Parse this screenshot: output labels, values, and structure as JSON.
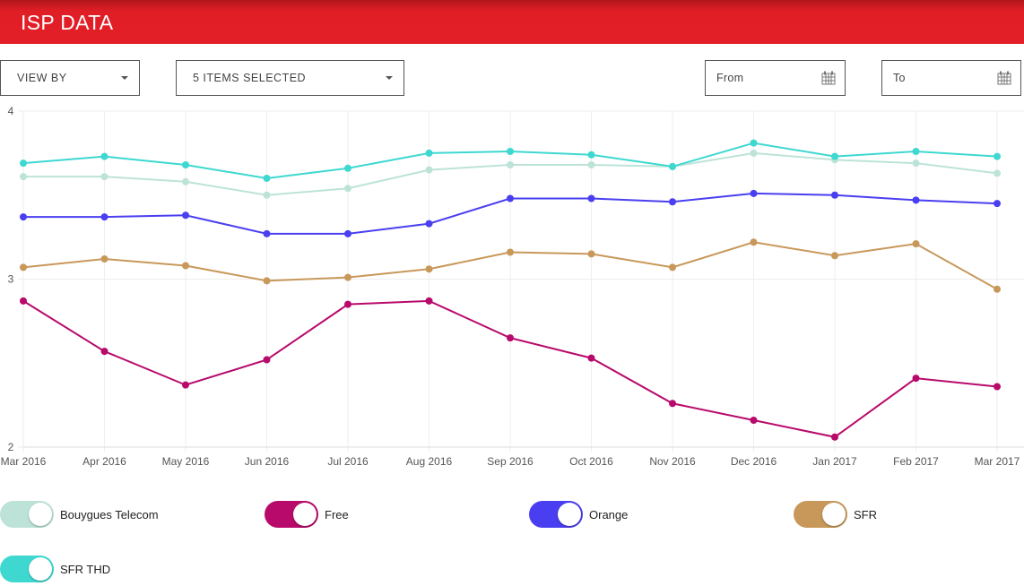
{
  "header": {
    "title": "ISP DATA"
  },
  "controls": {
    "view_by": "VIEW BY",
    "items_selected": "5 ITEMS SELECTED",
    "from_placeholder": "From",
    "to_placeholder": "To"
  },
  "chart_data": {
    "type": "line",
    "x": [
      "Mar 2016",
      "Apr 2016",
      "May 2016",
      "Jun 2016",
      "Jul 2016",
      "Aug 2016",
      "Sep 2016",
      "Oct 2016",
      "Nov 2016",
      "Dec 2016",
      "Jan 2017",
      "Feb 2017",
      "Mar 2017"
    ],
    "ylim": [
      2,
      4
    ],
    "yticks": [
      "2",
      "3",
      "4"
    ],
    "grid": true,
    "series": [
      {
        "name": "Bouygues Telecom",
        "color": "#bde3d8",
        "values": [
          3.61,
          3.61,
          3.58,
          3.5,
          3.54,
          3.65,
          3.68,
          3.68,
          3.67,
          3.75,
          3.71,
          3.69,
          3.63
        ]
      },
      {
        "name": "Free",
        "color": "#b80a6b",
        "values": [
          2.87,
          2.57,
          2.37,
          2.52,
          2.85,
          2.87,
          2.65,
          2.53,
          2.26,
          2.16,
          2.06,
          2.41,
          2.36
        ]
      },
      {
        "name": "Orange",
        "color": "#4a3ff0",
        "values": [
          3.37,
          3.37,
          3.38,
          3.27,
          3.27,
          3.33,
          3.48,
          3.48,
          3.46,
          3.51,
          3.5,
          3.47,
          3.45
        ]
      },
      {
        "name": "SFR",
        "color": "#c8985a",
        "values": [
          3.07,
          3.12,
          3.08,
          2.99,
          3.01,
          3.06,
          3.16,
          3.15,
          3.07,
          3.22,
          3.14,
          3.21,
          2.94
        ]
      },
      {
        "name": "SFR THD",
        "color": "#3ed8d0",
        "values": [
          3.69,
          3.73,
          3.68,
          3.6,
          3.66,
          3.75,
          3.76,
          3.74,
          3.67,
          3.81,
          3.73,
          3.76,
          3.73
        ]
      }
    ]
  }
}
